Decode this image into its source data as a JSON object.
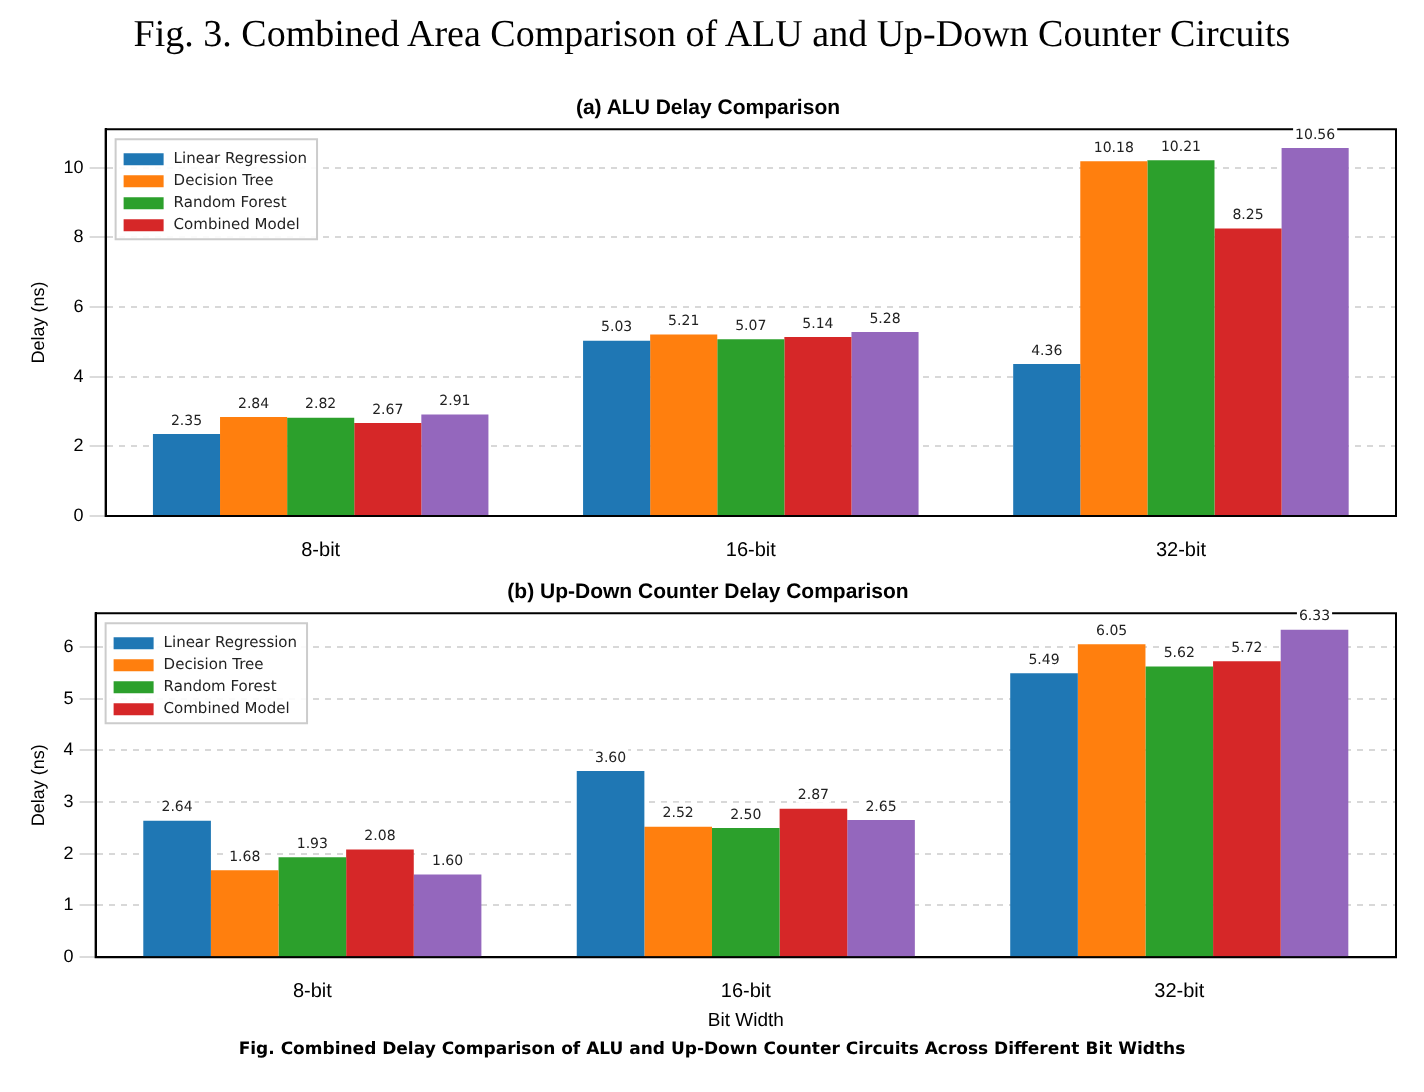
{
  "chart_data": [
    {
      "type": "bar",
      "title": "(a) ALU Delay Comparison",
      "ylabel": "Delay (ns)",
      "categories": [
        "8-bit",
        "16-bit",
        "32-bit"
      ],
      "series": [
        {
          "name": "Linear Regression",
          "color": "#1f77b4",
          "values": [
            2.35,
            5.03,
            4.36
          ],
          "value_labels": [
            "2.35",
            "5.03",
            "4.36"
          ]
        },
        {
          "name": "Decision Tree",
          "color": "#ff7f0e",
          "values": [
            2.84,
            5.21,
            10.18
          ],
          "value_labels": [
            "2.84",
            "5.21",
            "10.18"
          ]
        },
        {
          "name": "Random Forest",
          "color": "#2ca02c",
          "values": [
            2.82,
            5.07,
            10.21
          ],
          "value_labels": [
            "2.82",
            "5.07",
            "10.21"
          ]
        },
        {
          "name": "Combined Model",
          "color": "#d62728",
          "values": [
            2.67,
            5.14,
            8.25
          ],
          "value_labels": [
            "2.67",
            "5.14",
            "8.25"
          ]
        },
        {
          "color": "#9467bd",
          "values": [
            2.91,
            5.28,
            10.56
          ],
          "value_labels": [
            "2.91",
            "5.28",
            "10.56"
          ]
        }
      ],
      "ylim": [
        0,
        11.1
      ],
      "yticks": [
        0,
        2,
        4,
        6,
        8,
        10
      ],
      "grid": "y",
      "legend": "top left",
      "annotations": [
        "Fig. 3. Combined Area Comparison of ALU and Up-Down Counter Circuits"
      ]
    },
    {
      "type": "bar",
      "title": "(b) Up-Down Counter Delay Comparison",
      "xlabel": "Bit Width",
      "ylabel": "Delay (ns)",
      "categories": [
        "8-bit",
        "16-bit",
        "32-bit"
      ],
      "series": [
        {
          "name": "Linear Regression",
          "color": "#1f77b4",
          "values": [
            2.64,
            3.6,
            5.49
          ],
          "value_labels": [
            "2.64",
            "3.60",
            "5.49"
          ]
        },
        {
          "name": "Decision Tree",
          "color": "#ff7f0e",
          "values": [
            1.68,
            2.52,
            6.05
          ],
          "value_labels": [
            "1.68",
            "2.52",
            "6.05"
          ]
        },
        {
          "name": "Random Forest",
          "color": "#2ca02c",
          "values": [
            1.93,
            2.5,
            5.62
          ],
          "value_labels": [
            "1.93",
            "2.50",
            "5.62"
          ]
        },
        {
          "name": "Combined Model",
          "color": "#d62728",
          "values": [
            2.08,
            2.87,
            5.72
          ],
          "value_labels": [
            "2.08",
            "2.87",
            "5.72"
          ]
        },
        {
          "color": "#9467bd",
          "values": [
            1.6,
            2.65,
            6.33
          ],
          "value_labels": [
            "1.60",
            "2.65",
            "6.33"
          ]
        }
      ],
      "ylim": [
        0,
        6.65
      ],
      "yticks": [
        0,
        1,
        2,
        3,
        4,
        5,
        6
      ],
      "grid": "y",
      "legend": "top left",
      "annotations": [
        "Fig. Combined Delay Comparison of ALU and Up-Down Counter Circuits Across Different Bit Widths"
      ]
    }
  ]
}
